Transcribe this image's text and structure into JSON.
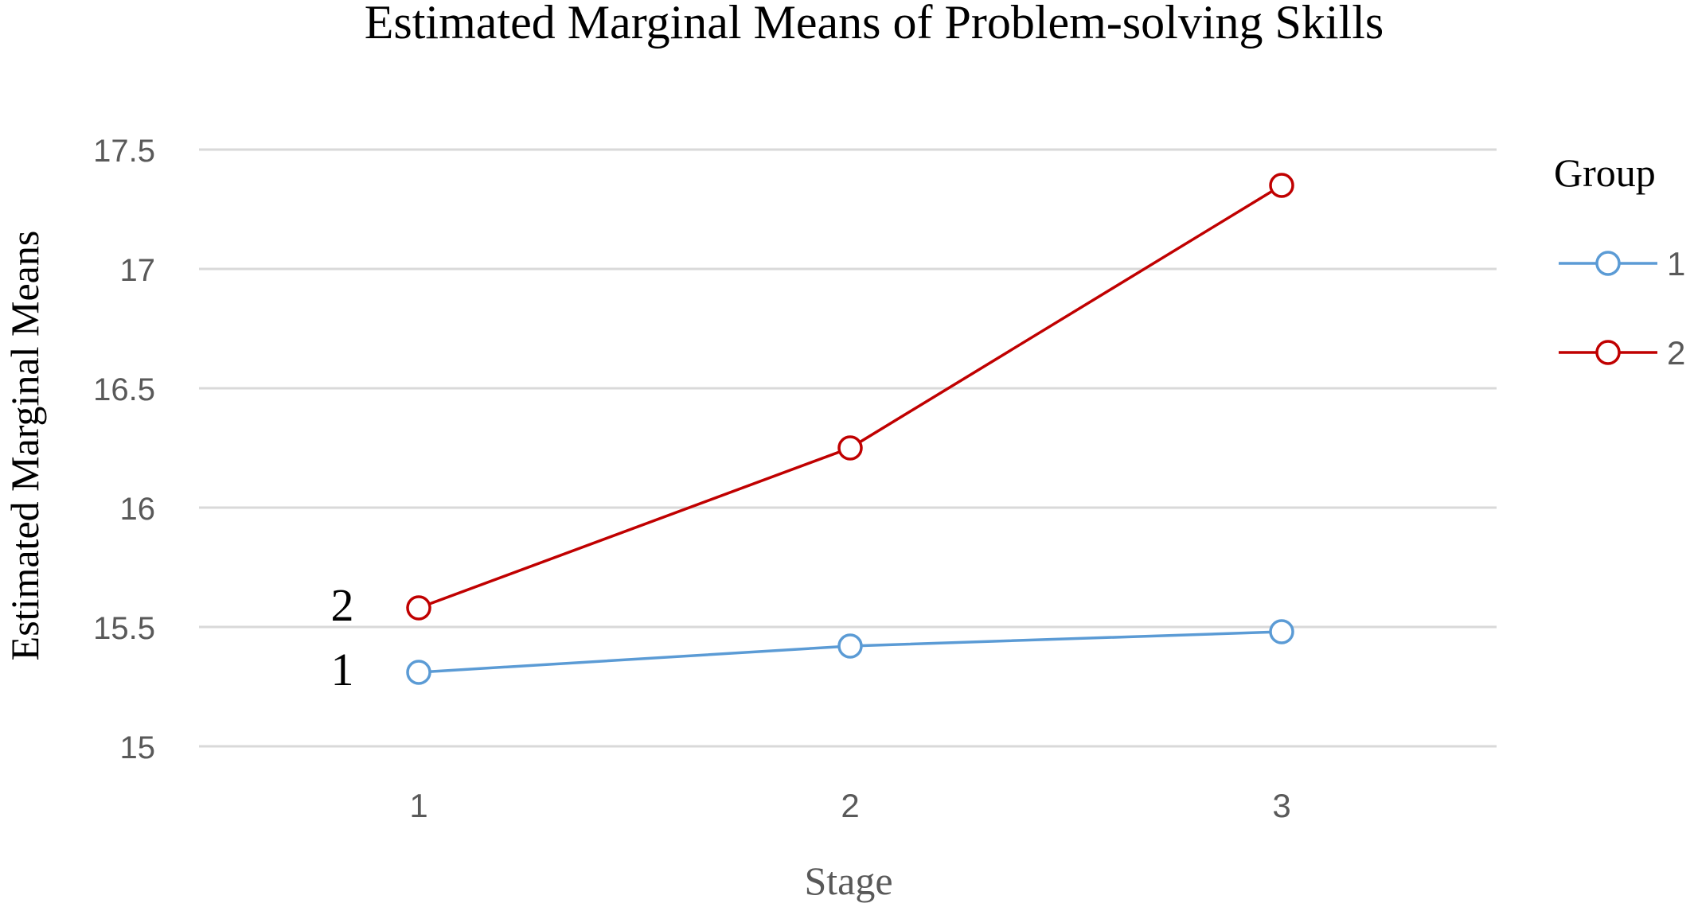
{
  "chart_data": {
    "type": "line",
    "title": "Estimated Marginal Means of Problem-solving Skills",
    "xlabel": "Stage",
    "ylabel": "Estimated Marginal Means",
    "categories": [
      "1",
      "2",
      "3"
    ],
    "yticks": [
      "15",
      "15.5",
      "16",
      "16.5",
      "17",
      "17.5"
    ],
    "ylim": [
      15,
      17.5
    ],
    "grid": true,
    "legend_title": "Group",
    "legend_position": "right",
    "series": [
      {
        "name": "1",
        "color": "#5b9bd5",
        "values": [
          15.31,
          15.42,
          15.48
        ],
        "end_label": "1"
      },
      {
        "name": "2",
        "color": "#c00000",
        "values": [
          15.58,
          16.25,
          17.35
        ],
        "end_label": "2"
      }
    ]
  }
}
